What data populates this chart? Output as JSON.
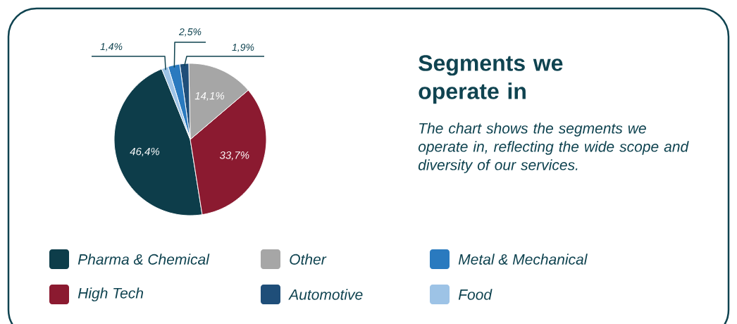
{
  "chart_data": {
    "type": "pie",
    "title": "Segments we operate in",
    "subtitle": "The chart shows the segments we operate in, reflecting the wide scope and diversity of our services.",
    "categories": [
      "Pharma & Chemical",
      "High Tech",
      "Other",
      "Automotive",
      "Metal & Mechanical",
      "Food"
    ],
    "values": [
      46.4,
      33.7,
      14.1,
      1.9,
      2.5,
      1.4
    ],
    "value_labels": [
      "46,4%",
      "33,7%",
      "14,1%",
      "1,9%",
      "2,5%",
      "1,4%"
    ],
    "colors": [
      "#0d3d4a",
      "#8b1a30",
      "#a6a6a6",
      "#1f4e79",
      "#2a7abf",
      "#9dc3e6"
    ],
    "legend": "bottom"
  }
}
